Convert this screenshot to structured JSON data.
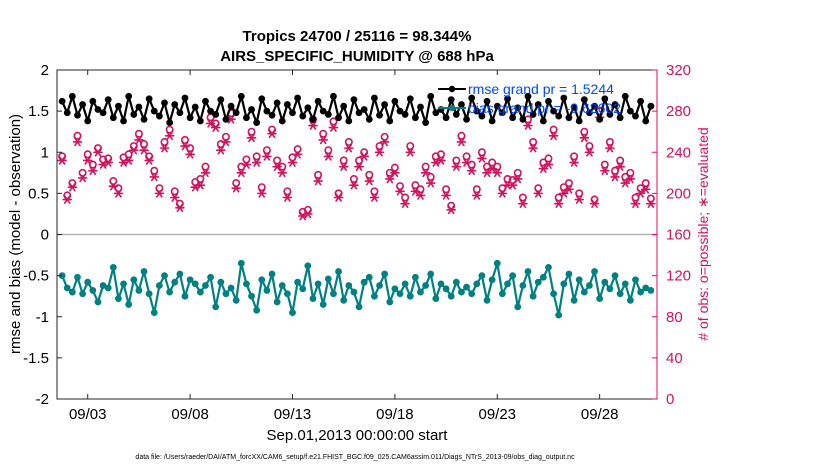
{
  "chart_data": {
    "type": "line",
    "title_line1": "Tropics 24700 / 25116 = 98.344%",
    "title_line2": "AIRS_SPECIFIC_HUMIDITY @ 688 hPa",
    "xlabel": "Sep.01,2013 00:00:00 start",
    "ylabel": "rmse and bias (model - observation)",
    "ylabel_right": "# of obs: o=possible; ∗=evaluated",
    "footer": "data file: /Users/raeder/DAI/ATM_forcXX/CAM6_setup/f.e21.FHIST_BGC.f09_025.CAM6assim.011/Diags_NTrS_2013-09/obs_diag_output.nc",
    "xlim": [
      1.5,
      30.8
    ],
    "ylim": [
      -2,
      2
    ],
    "ylim_right": [
      0,
      320
    ],
    "x_ticks": [
      3,
      8,
      13,
      18,
      23,
      28
    ],
    "x_tick_labels": [
      "09/03",
      "09/08",
      "09/13",
      "09/18",
      "09/23",
      "09/28"
    ],
    "y_ticks": [
      -2,
      -1.5,
      -1,
      -0.5,
      0,
      0.5,
      1,
      1.5,
      2
    ],
    "y_tick_labels": [
      "-2",
      "-1.5",
      "-1",
      "-0.5",
      "0",
      "0.5",
      "1",
      "1.5",
      "2"
    ],
    "y_right_ticks": [
      0,
      40,
      80,
      120,
      160,
      200,
      240,
      280,
      320
    ],
    "y_right_tick_labels": [
      "0",
      "40",
      "80",
      "120",
      "160",
      "200",
      "240",
      "280",
      "320"
    ],
    "legend": {
      "rmse_label": "rmse grand pr = 1.5244",
      "bias_label": "bias grand pr = -0.62602"
    },
    "colors": {
      "rmse": "#000000",
      "bias": "#008080",
      "obs": "#d1135d",
      "zero_line": "#b3b3b3",
      "legend_text": "#0047ff"
    },
    "series": [
      {
        "name": "rmse",
        "start_x": 1.75,
        "step": 0.25,
        "values": [
          1.62,
          1.48,
          1.68,
          1.45,
          1.58,
          1.38,
          1.62,
          1.52,
          1.48,
          1.64,
          1.42,
          1.56,
          1.38,
          1.68,
          1.46,
          1.55,
          1.4,
          1.65,
          1.5,
          1.44,
          1.6,
          1.36,
          1.58,
          1.48,
          1.66,
          1.42,
          1.55,
          1.38,
          1.62,
          1.5,
          1.46,
          1.64,
          1.4,
          1.56,
          1.48,
          1.68,
          1.42,
          1.52,
          1.36,
          1.65,
          1.5,
          1.45,
          1.6,
          1.38,
          1.58,
          1.48,
          1.66,
          1.44,
          1.54,
          1.4,
          1.62,
          1.5,
          1.46,
          1.68,
          1.42,
          1.56,
          1.38,
          1.64,
          1.48,
          1.52,
          1.4,
          1.66,
          1.45,
          1.58,
          1.38,
          1.62,
          1.5,
          1.46,
          1.65,
          1.42,
          1.55,
          1.36,
          1.68,
          1.48,
          1.52,
          1.42,
          1.64,
          1.46,
          1.58,
          1.4,
          1.66,
          1.5,
          1.44,
          1.62,
          1.38,
          1.56,
          1.48,
          1.65,
          1.42,
          1.54,
          1.4,
          1.68,
          1.46,
          1.58,
          1.38,
          1.62,
          1.5,
          1.44,
          1.66,
          1.42,
          1.55,
          1.38,
          1.64,
          1.48,
          1.56,
          1.4,
          1.65,
          1.46,
          1.58,
          1.42,
          1.68,
          1.5,
          1.44,
          1.62,
          1.38,
          1.56
        ],
        "marker": "filled-circle"
      },
      {
        "name": "bias",
        "start_x": 1.75,
        "step": 0.25,
        "values": [
          -0.5,
          -0.65,
          -0.7,
          -0.52,
          -0.72,
          -0.58,
          -0.68,
          -0.82,
          -0.62,
          -0.65,
          -0.4,
          -0.78,
          -0.6,
          -0.85,
          -0.55,
          -0.68,
          -0.45,
          -0.72,
          -0.95,
          -0.62,
          -0.5,
          -0.7,
          -0.58,
          -0.48,
          -0.75,
          -0.55,
          -0.6,
          -0.7,
          -0.62,
          -0.52,
          -0.88,
          -0.58,
          -0.72,
          -0.65,
          -0.8,
          -0.35,
          -0.6,
          -0.75,
          -0.92,
          -0.55,
          -0.68,
          -0.48,
          -0.82,
          -0.62,
          -0.72,
          -0.95,
          -0.58,
          -0.66,
          -0.38,
          -0.78,
          -0.6,
          -0.85,
          -0.54,
          -0.72,
          -0.45,
          -0.8,
          -0.62,
          -0.7,
          -0.88,
          -0.58,
          -0.52,
          -0.75,
          -0.62,
          -0.48,
          -0.82,
          -0.66,
          -0.72,
          -0.6,
          -0.75,
          -0.52,
          -0.7,
          -0.62,
          -0.48,
          -0.78,
          -0.6,
          -0.66,
          -0.75,
          -0.58,
          -0.7,
          -0.64,
          -0.72,
          -0.6,
          -0.5,
          -0.8,
          -0.55,
          -0.35,
          -0.72,
          -0.6,
          -0.5,
          -0.88,
          -0.62,
          -0.45,
          -0.75,
          -0.58,
          -0.52,
          -0.4,
          -0.72,
          -0.98,
          -0.6,
          -0.48,
          -0.8,
          -0.55,
          -0.7,
          -0.62,
          -0.45,
          -0.78,
          -0.58,
          -0.66,
          -0.5,
          -0.72,
          -0.6,
          -0.8,
          -0.55,
          -0.7,
          -0.65,
          -0.68
        ],
        "marker": "filled-circle"
      },
      {
        "name": "obs possible",
        "start_x": 1.75,
        "step": 0.25,
        "values": [
          236,
          198,
          210,
          256,
          220,
          238,
          228,
          244,
          233,
          234,
          212,
          205,
          235,
          238,
          246,
          258,
          248,
          236,
          222,
          205,
          250,
          262,
          202,
          190,
          252,
          244,
          211,
          214,
          226,
          274,
          268,
          248,
          255,
          278,
          210,
          226,
          233,
          260,
          236,
          206,
          242,
          262,
          232,
          226,
          202,
          235,
          243,
          182,
          184,
          272,
          218,
          258,
          242,
          270,
          200,
          232,
          250,
          214,
          232,
          240,
          218,
          202,
          246,
          255,
          220,
          225,
          207,
          196,
          246,
          208,
          204,
          226,
          216,
          236,
          238,
          204,
          188,
          232,
          256,
          236,
          228,
          204,
          240,
          226,
          230,
          226,
          205,
          214,
          213,
          220,
          196,
          272,
          250,
          205,
          230,
          234,
          262,
          196,
          206,
          210,
          236,
          200,
          260,
          246,
          194,
          280,
          228,
          250,
          222,
          232,
          216,
          220,
          196,
          205,
          210,
          195
        ],
        "marker": "open-circle"
      },
      {
        "name": "obs evaluated",
        "start_x": 1.75,
        "step": 0.25,
        "values": [
          232,
          194,
          206,
          250,
          215,
          232,
          222,
          240,
          228,
          230,
          207,
          200,
          230,
          232,
          242,
          252,
          242,
          232,
          216,
          200,
          244,
          256,
          196,
          186,
          246,
          238,
          206,
          208,
          220,
          268,
          264,
          242,
          250,
          272,
          205,
          220,
          228,
          254,
          230,
          200,
          236,
          258,
          226,
          220,
          196,
          230,
          238,
          178,
          180,
          266,
          212,
          252,
          236,
          264,
          196,
          226,
          244,
          208,
          226,
          236,
          212,
          196,
          240,
          250,
          214,
          220,
          202,
          190,
          240,
          202,
          198,
          220,
          210,
          230,
          232,
          198,
          184,
          226,
          250,
          230,
          222,
          198,
          234,
          220,
          224,
          220,
          200,
          208,
          208,
          214,
          190,
          266,
          244,
          200,
          224,
          228,
          256,
          190,
          200,
          204,
          230,
          194,
          254,
          240,
          190,
          274,
          222,
          244,
          216,
          226,
          210,
          214,
          190,
          200,
          204,
          190
        ],
        "marker": "asterisk"
      }
    ]
  }
}
